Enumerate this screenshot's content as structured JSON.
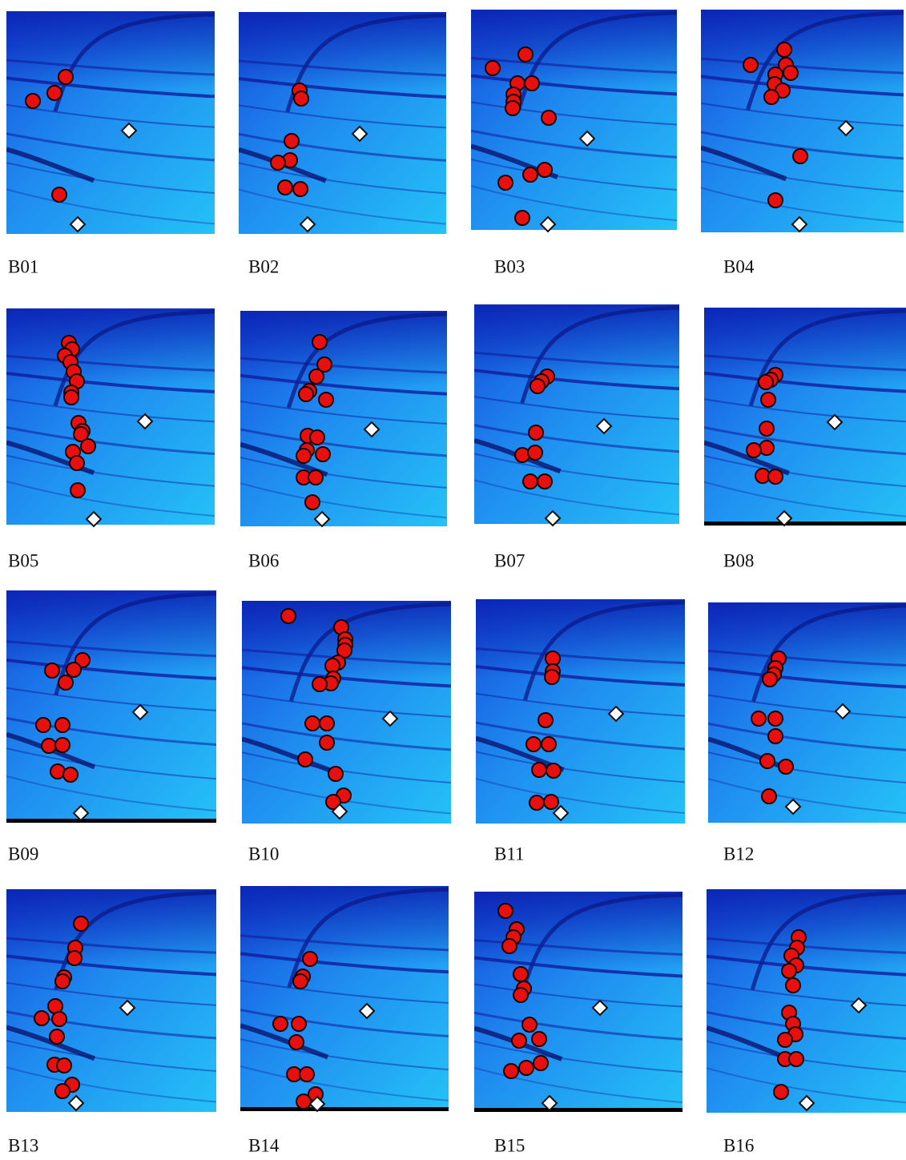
{
  "panels": [
    {
      "label": "B01"
    },
    {
      "label": "B02"
    },
    {
      "label": "B03"
    },
    {
      "label": "B04"
    },
    {
      "label": "B05"
    },
    {
      "label": "B06"
    },
    {
      "label": "B07"
    },
    {
      "label": "B08"
    },
    {
      "label": "B09"
    },
    {
      "label": "B10"
    },
    {
      "label": "B11"
    },
    {
      "label": "B12"
    },
    {
      "label": "B13"
    },
    {
      "label": "B14"
    },
    {
      "label": "B15"
    },
    {
      "label": "B16"
    }
  ]
}
